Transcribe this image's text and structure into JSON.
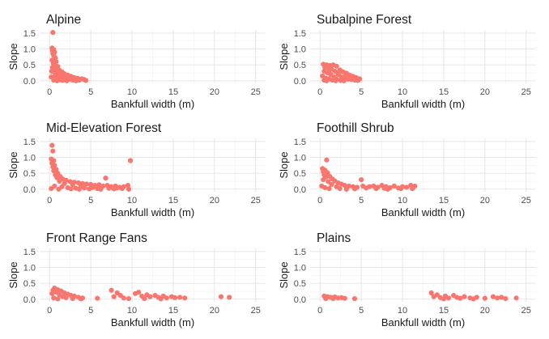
{
  "chart_data": [
    {
      "type": "scatter",
      "title": "Alpine",
      "xlabel": "Bankfull width (m)",
      "ylabel": "Slope",
      "xlim": [
        -1.2,
        26.2
      ],
      "ylim": [
        -0.08,
        1.6
      ],
      "xticks": [
        0,
        5,
        10,
        15,
        20,
        25
      ],
      "yticks": [
        0.0,
        0.5,
        1.0,
        1.5
      ],
      "ytick_labels": [
        "0.0",
        "0.5",
        "1.0",
        "1.5"
      ],
      "grid": true,
      "color": "#F8766D",
      "points": [
        [
          0.4,
          1.52
        ],
        [
          0.3,
          1.03
        ],
        [
          0.5,
          0.98
        ],
        [
          0.35,
          0.95
        ],
        [
          0.6,
          0.9
        ],
        [
          0.4,
          0.85
        ],
        [
          0.5,
          0.8
        ],
        [
          0.7,
          0.72
        ],
        [
          0.3,
          0.65
        ],
        [
          0.8,
          0.6
        ],
        [
          0.45,
          0.55
        ],
        [
          0.6,
          0.5
        ],
        [
          1.0,
          0.45
        ],
        [
          0.35,
          0.42
        ],
        [
          0.9,
          0.38
        ],
        [
          1.2,
          0.33
        ],
        [
          0.5,
          0.3
        ],
        [
          1.5,
          0.28
        ],
        [
          0.7,
          0.25
        ],
        [
          1.8,
          0.22
        ],
        [
          1.1,
          0.2
        ],
        [
          2.2,
          0.18
        ],
        [
          1.4,
          0.16
        ],
        [
          2.6,
          0.14
        ],
        [
          0.2,
          0.12
        ],
        [
          3.0,
          0.1
        ],
        [
          1.7,
          0.1
        ],
        [
          3.4,
          0.08
        ],
        [
          2.0,
          0.07
        ],
        [
          3.9,
          0.06
        ],
        [
          2.4,
          0.05
        ],
        [
          4.2,
          0.04
        ],
        [
          0.8,
          0.04
        ],
        [
          1.3,
          0.03
        ],
        [
          2.8,
          0.02
        ],
        [
          3.6,
          0.02
        ],
        [
          0.5,
          0.02
        ],
        [
          1.6,
          0.01
        ],
        [
          2.1,
          0.0
        ],
        [
          0.9,
          0.0
        ],
        [
          3.2,
          0.0
        ],
        [
          4.4,
          0.01
        ],
        [
          0.25,
          0.3
        ],
        [
          0.55,
          0.65
        ],
        [
          1.0,
          0.12
        ],
        [
          1.9,
          0.05
        ],
        [
          2.7,
          0.09
        ],
        [
          0.65,
          0.15
        ]
      ]
    },
    {
      "type": "scatter",
      "title": "Subalpine Forest",
      "xlabel": "Bankfull width (m)",
      "ylabel": "Slope",
      "xlim": [
        -1.2,
        26.2
      ],
      "ylim": [
        -0.08,
        1.6
      ],
      "xticks": [
        0,
        5,
        10,
        15,
        20,
        25
      ],
      "yticks": [
        0.0,
        0.5,
        1.0,
        1.5
      ],
      "ytick_labels": [
        "0.0",
        "0.5",
        "1.0",
        "1.5"
      ],
      "grid": true,
      "color": "#F8766D",
      "points": [
        [
          0.4,
          0.52
        ],
        [
          0.8,
          0.5
        ],
        [
          1.2,
          0.48
        ],
        [
          1.6,
          0.5
        ],
        [
          2.0,
          0.46
        ],
        [
          0.6,
          0.42
        ],
        [
          1.0,
          0.4
        ],
        [
          1.4,
          0.36
        ],
        [
          2.4,
          0.34
        ],
        [
          0.5,
          0.3
        ],
        [
          1.8,
          0.3
        ],
        [
          2.8,
          0.28
        ],
        [
          3.2,
          0.24
        ],
        [
          0.9,
          0.25
        ],
        [
          1.3,
          0.2
        ],
        [
          2.2,
          0.2
        ],
        [
          3.6,
          0.18
        ],
        [
          4.0,
          0.14
        ],
        [
          0.3,
          0.15
        ],
        [
          1.7,
          0.12
        ],
        [
          2.6,
          0.12
        ],
        [
          3.0,
          0.1
        ],
        [
          4.4,
          0.1
        ],
        [
          4.8,
          0.06
        ],
        [
          0.7,
          0.08
        ],
        [
          1.1,
          0.06
        ],
        [
          2.0,
          0.05
        ],
        [
          3.4,
          0.05
        ],
        [
          3.8,
          0.04
        ],
        [
          4.2,
          0.02
        ],
        [
          0.5,
          0.02
        ],
        [
          1.5,
          0.02
        ],
        [
          2.5,
          0.01
        ],
        [
          2.9,
          0.0
        ],
        [
          1.9,
          0.0
        ],
        [
          0.8,
          0.0
        ],
        [
          4.6,
          0.01
        ],
        [
          3.1,
          0.15
        ],
        [
          2.3,
          0.26
        ],
        [
          1.1,
          0.32
        ]
      ]
    },
    {
      "type": "scatter",
      "title": "Mid-Elevation Forest",
      "xlabel": "Bankfull width (m)",
      "ylabel": "Slope",
      "xlim": [
        -1.2,
        26.2
      ],
      "ylim": [
        -0.08,
        1.6
      ],
      "xticks": [
        0,
        5,
        10,
        15,
        20,
        25
      ],
      "yticks": [
        0.0,
        0.5,
        1.0,
        1.5
      ],
      "ytick_labels": [
        "0.0",
        "0.5",
        "1.0",
        "1.5"
      ],
      "grid": true,
      "color": "#F8766D",
      "points": [
        [
          0.3,
          1.38
        ],
        [
          0.4,
          1.2
        ],
        [
          0.2,
          0.95
        ],
        [
          0.5,
          0.9
        ],
        [
          0.3,
          0.82
        ],
        [
          0.6,
          0.75
        ],
        [
          0.4,
          0.7
        ],
        [
          0.8,
          0.62
        ],
        [
          0.5,
          0.58
        ],
        [
          1.0,
          0.5
        ],
        [
          0.7,
          0.45
        ],
        [
          1.3,
          0.4
        ],
        [
          0.9,
          0.36
        ],
        [
          1.6,
          0.32
        ],
        [
          2.0,
          0.28
        ],
        [
          1.2,
          0.25
        ],
        [
          2.5,
          0.24
        ],
        [
          3.0,
          0.22
        ],
        [
          3.5,
          0.2
        ],
        [
          1.8,
          0.18
        ],
        [
          4.0,
          0.18
        ],
        [
          4.5,
          0.16
        ],
        [
          2.8,
          0.14
        ],
        [
          5.0,
          0.15
        ],
        [
          5.5,
          0.12
        ],
        [
          3.8,
          0.1
        ],
        [
          6.0,
          0.14
        ],
        [
          6.5,
          0.1
        ],
        [
          7.0,
          0.12
        ],
        [
          7.5,
          0.08
        ],
        [
          8.0,
          0.1
        ],
        [
          8.5,
          0.06
        ],
        [
          9.0,
          0.08
        ],
        [
          9.5,
          0.12
        ],
        [
          9.8,
          0.9
        ],
        [
          6.8,
          0.35
        ],
        [
          5.2,
          0.05
        ],
        [
          4.2,
          0.04
        ],
        [
          3.2,
          0.03
        ],
        [
          2.2,
          0.05
        ],
        [
          1.5,
          0.08
        ],
        [
          0.6,
          0.1
        ],
        [
          0.2,
          0.02
        ],
        [
          1.1,
          0.0
        ],
        [
          2.6,
          0.01
        ],
        [
          3.6,
          0.0
        ],
        [
          4.8,
          0.01
        ],
        [
          5.8,
          0.02
        ],
        [
          6.2,
          0.0
        ],
        [
          7.2,
          0.03
        ],
        [
          7.8,
          0.01
        ],
        [
          8.8,
          0.02
        ],
        [
          9.6,
          0.0
        ],
        [
          8.2,
          0.04
        ]
      ]
    },
    {
      "type": "scatter",
      "title": "Foothill Shrub",
      "xlabel": "Bankfull width (m)",
      "ylabel": "Slope",
      "xlim": [
        -1.2,
        26.2
      ],
      "ylim": [
        -0.08,
        1.6
      ],
      "xticks": [
        0,
        5,
        10,
        15,
        20,
        25
      ],
      "yticks": [
        0.0,
        0.5,
        1.0,
        1.5
      ],
      "ytick_labels": [
        "0.0",
        "0.5",
        "1.0",
        "1.5"
      ],
      "grid": true,
      "color": "#F8766D",
      "points": [
        [
          0.8,
          0.92
        ],
        [
          0.3,
          0.65
        ],
        [
          0.6,
          0.6
        ],
        [
          0.4,
          0.55
        ],
        [
          0.9,
          0.52
        ],
        [
          0.5,
          0.45
        ],
        [
          1.2,
          0.4
        ],
        [
          0.7,
          0.38
        ],
        [
          1.5,
          0.32
        ],
        [
          0.4,
          0.3
        ],
        [
          1.8,
          0.26
        ],
        [
          1.0,
          0.24
        ],
        [
          2.2,
          0.2
        ],
        [
          2.6,
          0.16
        ],
        [
          1.4,
          0.15
        ],
        [
          3.0,
          0.12
        ],
        [
          3.5,
          0.1
        ],
        [
          2.0,
          0.08
        ],
        [
          4.0,
          0.08
        ],
        [
          4.5,
          0.06
        ],
        [
          5.0,
          0.3
        ],
        [
          5.2,
          0.1
        ],
        [
          5.6,
          0.04
        ],
        [
          6.0,
          0.08
        ],
        [
          6.5,
          0.1
        ],
        [
          7.0,
          0.06
        ],
        [
          7.5,
          0.12
        ],
        [
          8.0,
          0.08
        ],
        [
          8.5,
          0.05
        ],
        [
          9.0,
          0.1
        ],
        [
          9.5,
          0.04
        ],
        [
          10.0,
          0.08
        ],
        [
          10.5,
          0.06
        ],
        [
          11.0,
          0.12
        ],
        [
          11.5,
          0.1
        ],
        [
          0.2,
          0.1
        ],
        [
          0.6,
          0.05
        ],
        [
          1.1,
          0.02
        ],
        [
          2.4,
          0.02
        ],
        [
          3.2,
          0.0
        ],
        [
          4.2,
          0.01
        ],
        [
          6.8,
          0.02
        ],
        [
          8.2,
          0.0
        ],
        [
          9.8,
          0.02
        ],
        [
          11.2,
          0.02
        ],
        [
          7.8,
          0.03
        ]
      ]
    },
    {
      "type": "scatter",
      "title": "Front Range Fans",
      "xlabel": "Bankfull width (m)",
      "ylabel": "Slope",
      "xlim": [
        -1.2,
        26.2
      ],
      "ylim": [
        -0.08,
        1.6
      ],
      "xticks": [
        0,
        5,
        10,
        15,
        20,
        25
      ],
      "yticks": [
        0.0,
        0.5,
        1.0,
        1.5
      ],
      "ytick_labels": [
        "0.0",
        "0.5",
        "1.0",
        "1.5"
      ],
      "grid": true,
      "color": "#F8766D",
      "points": [
        [
          0.6,
          0.35
        ],
        [
          1.0,
          0.3
        ],
        [
          0.4,
          0.28
        ],
        [
          1.4,
          0.26
        ],
        [
          0.8,
          0.22
        ],
        [
          1.8,
          0.2
        ],
        [
          0.3,
          0.18
        ],
        [
          2.2,
          0.16
        ],
        [
          1.2,
          0.14
        ],
        [
          2.6,
          0.12
        ],
        [
          3.0,
          0.1
        ],
        [
          1.6,
          0.08
        ],
        [
          3.5,
          0.06
        ],
        [
          2.0,
          0.05
        ],
        [
          4.0,
          0.04
        ],
        [
          0.5,
          0.04
        ],
        [
          2.8,
          0.02
        ],
        [
          1.0,
          0.01
        ],
        [
          3.8,
          0.01
        ],
        [
          5.8,
          0.03
        ],
        [
          7.5,
          0.28
        ],
        [
          8.2,
          0.2
        ],
        [
          7.8,
          0.08
        ],
        [
          8.6,
          0.12
        ],
        [
          9.0,
          0.04
        ],
        [
          10.4,
          0.18
        ],
        [
          10.8,
          0.22
        ],
        [
          11.2,
          0.1
        ],
        [
          11.8,
          0.14
        ],
        [
          12.2,
          0.08
        ],
        [
          12.8,
          0.12
        ],
        [
          13.2,
          0.06
        ],
        [
          13.8,
          0.1
        ],
        [
          14.2,
          0.04
        ],
        [
          14.8,
          0.08
        ],
        [
          15.2,
          0.05
        ],
        [
          15.8,
          0.06
        ],
        [
          16.4,
          0.04
        ],
        [
          9.6,
          0.02
        ],
        [
          11.5,
          0.02
        ],
        [
          13.5,
          0.01
        ],
        [
          20.8,
          0.08
        ],
        [
          21.8,
          0.06
        ]
      ]
    },
    {
      "type": "scatter",
      "title": "Plains",
      "xlabel": "Bankfull width (m)",
      "ylabel": "Slope",
      "xlim": [
        -1.2,
        26.2
      ],
      "ylim": [
        -0.08,
        1.6
      ],
      "xticks": [
        0,
        5,
        10,
        15,
        20,
        25
      ],
      "yticks": [
        0.0,
        0.5,
        1.0,
        1.5
      ],
      "ytick_labels": [
        "0.0",
        "0.5",
        "1.0",
        "1.5"
      ],
      "grid": true,
      "color": "#F8766D",
      "points": [
        [
          0.5,
          0.1
        ],
        [
          0.9,
          0.08
        ],
        [
          1.3,
          0.06
        ],
        [
          1.8,
          0.07
        ],
        [
          2.2,
          0.04
        ],
        [
          2.6,
          0.05
        ],
        [
          3.0,
          0.03
        ],
        [
          0.7,
          0.02
        ],
        [
          1.6,
          0.02
        ],
        [
          4.2,
          0.02
        ],
        [
          13.5,
          0.2
        ],
        [
          13.8,
          0.08
        ],
        [
          14.2,
          0.14
        ],
        [
          14.6,
          0.05
        ],
        [
          15.2,
          0.1
        ],
        [
          15.6,
          0.04
        ],
        [
          16.2,
          0.12
        ],
        [
          16.6,
          0.06
        ],
        [
          17.0,
          0.03
        ],
        [
          17.5,
          0.08
        ],
        [
          18.2,
          0.04
        ],
        [
          19.0,
          0.06
        ],
        [
          20.0,
          0.03
        ],
        [
          21.0,
          0.08
        ],
        [
          21.5,
          0.04
        ],
        [
          22.0,
          0.06
        ],
        [
          22.5,
          0.02
        ],
        [
          23.8,
          0.04
        ],
        [
          15.0,
          0.01
        ],
        [
          18.6,
          0.01
        ]
      ]
    }
  ]
}
